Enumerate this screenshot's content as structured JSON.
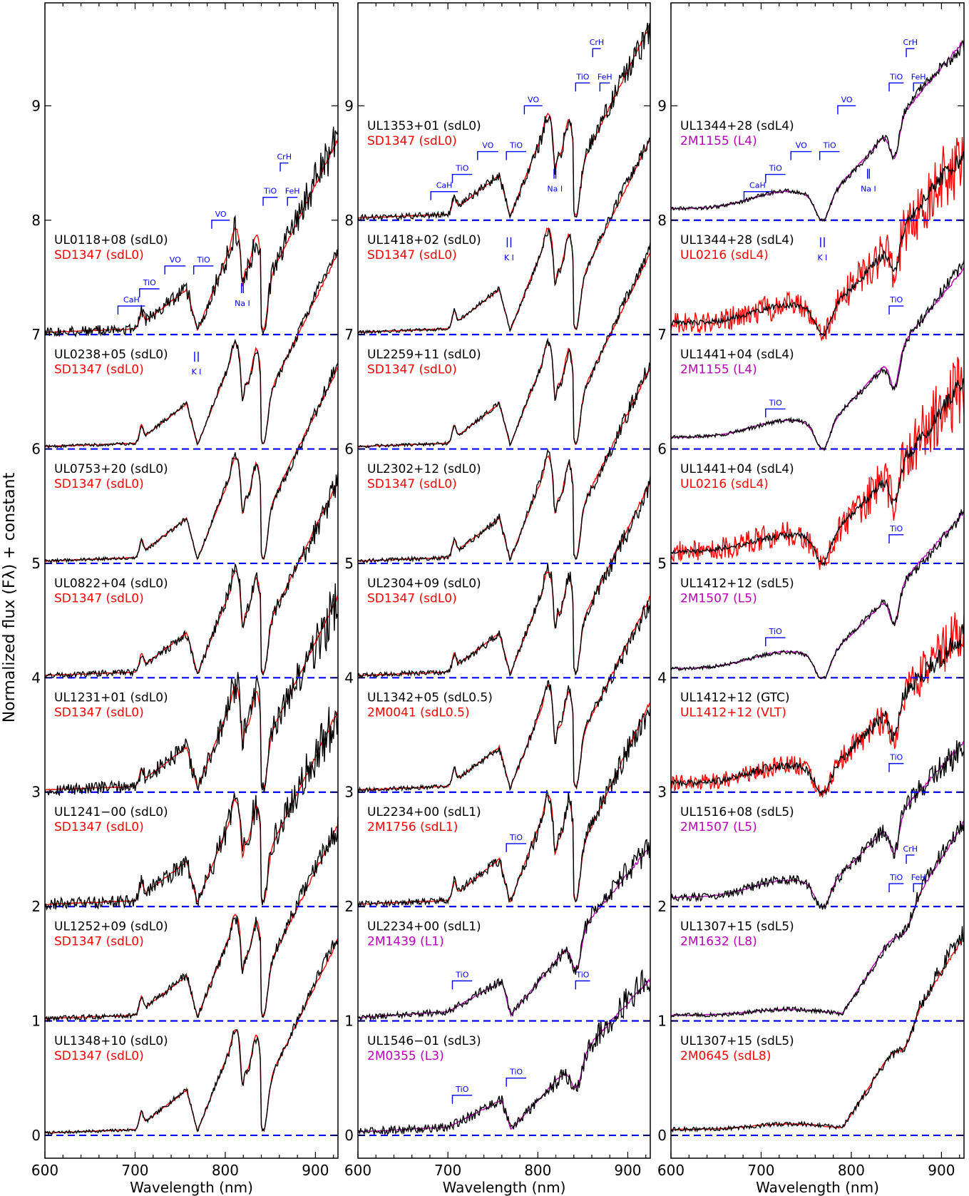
{
  "figure": {
    "ylabel": "Normalized flux (Fλ) + constant",
    "xlabel": "Wavelength (nm)"
  },
  "colors": {
    "black": "#000000",
    "red": "#ff0000",
    "magenta": "#bb00bb",
    "blue": "#0000ff",
    "gray": "#c8c8c8",
    "darkgray": "#808080"
  },
  "chart_data": [
    {
      "type": "line",
      "xlabel": "Wavelength (nm)",
      "ylabel": "Normalized flux (Fλ) + constant",
      "xlim": [
        600,
        925
      ],
      "ylim": [
        -0.2,
        9.9
      ],
      "xticks": [
        "600",
        "700",
        "800",
        "900"
      ],
      "yticks": [
        "0",
        "1",
        "2",
        "3",
        "4",
        "5",
        "6",
        "7",
        "8",
        "9"
      ],
      "telluric_bands": [
        [
          686,
          694
        ],
        [
          716,
          730
        ],
        [
          758,
          765
        ],
        [
          813,
          828
        ],
        [
          893,
          925
        ]
      ],
      "band_labels": [
        {
          "text": "CaH",
          "x1": 681,
          "x2": 711,
          "y": 7.25
        },
        {
          "text": "TiO",
          "x1": 705,
          "x2": 727,
          "y": 7.4
        },
        {
          "text": "VO",
          "x1": 733,
          "x2": 756,
          "y": 7.6
        },
        {
          "text": "TiO",
          "x1": 765,
          "x2": 787,
          "y": 7.6
        },
        {
          "text": "VO",
          "x1": 785,
          "x2": 805,
          "y": 8.0
        },
        {
          "text": "TiO",
          "x1": 842,
          "x2": 858,
          "y": 8.2
        },
        {
          "text": "CrH",
          "x1": 861,
          "x2": 870,
          "y": 8.5
        },
        {
          "text": "FeH",
          "x1": 869,
          "x2": 880,
          "y": 8.2
        },
        {
          "text": "K I",
          "x1": 766,
          "x2": 770,
          "y": 6.85,
          "below": true
        },
        {
          "text": "Na I",
          "x1": 818,
          "x2": 820,
          "y": 7.45,
          "below": true
        }
      ],
      "series": [
        {
          "offset": 0,
          "label": "UL1348+10 (sdL0)",
          "comparison": "SD1347 (sdL0)",
          "comp_color": "red",
          "shape": "sdL0",
          "noise": 0.03
        },
        {
          "offset": 1,
          "label": "UL1252+09 (sdL0)",
          "comparison": "SD1347 (sdL0)",
          "comp_color": "red",
          "shape": "sdL0",
          "noise": 0.05
        },
        {
          "offset": 2,
          "label": "UL1241−00 (sdL0)",
          "comparison": "SD1347 (sdL0)",
          "comp_color": "red",
          "shape": "sdL0",
          "noise": 0.12
        },
        {
          "offset": 3,
          "label": "UL1231+01 (sdL0)",
          "comparison": "SD1347 (sdL0)",
          "comp_color": "red",
          "shape": "sdL0",
          "noise": 0.12
        },
        {
          "offset": 4,
          "label": "UL0822+04 (sdL0)",
          "comparison": "SD1347 (sdL0)",
          "comp_color": "red",
          "shape": "sdL0",
          "noise": 0.06
        },
        {
          "offset": 5,
          "label": "UL0753+20 (sdL0)",
          "comparison": "SD1347 (sdL0)",
          "comp_color": "red",
          "shape": "sdL0",
          "noise": 0.03
        },
        {
          "offset": 6,
          "label": "UL0238+05 (sdL0)",
          "comparison": "SD1347 (sdL0)",
          "comp_color": "red",
          "shape": "sdL0",
          "noise": 0.03
        },
        {
          "offset": 7,
          "label": "UL0118+08 (sdL0)",
          "comparison": "SD1347 (sdL0)",
          "comp_color": "red",
          "shape": "sdL0",
          "noise": 0.1
        }
      ]
    },
    {
      "type": "line",
      "xlabel": "Wavelength (nm)",
      "xlim": [
        600,
        925
      ],
      "ylim": [
        -0.2,
        9.9
      ],
      "xticks": [
        "600",
        "700",
        "800",
        "900"
      ],
      "yticks": [
        "0",
        "1",
        "2",
        "3",
        "4",
        "5",
        "6",
        "7",
        "8",
        "9"
      ],
      "telluric_bands": [
        [
          686,
          694
        ],
        [
          716,
          730
        ],
        [
          758,
          765
        ],
        [
          813,
          828
        ],
        [
          893,
          925
        ]
      ],
      "band_labels": [
        {
          "text": "CaH",
          "x1": 681,
          "x2": 711,
          "y": 8.25
        },
        {
          "text": "TiO",
          "x1": 705,
          "x2": 727,
          "y": 8.4
        },
        {
          "text": "VO",
          "x1": 733,
          "x2": 756,
          "y": 8.6
        },
        {
          "text": "TiO",
          "x1": 765,
          "x2": 787,
          "y": 8.6
        },
        {
          "text": "VO",
          "x1": 785,
          "x2": 805,
          "y": 9.0
        },
        {
          "text": "TiO",
          "x1": 842,
          "x2": 858,
          "y": 9.2
        },
        {
          "text": "CrH",
          "x1": 861,
          "x2": 870,
          "y": 9.5
        },
        {
          "text": "FeH",
          "x1": 869,
          "x2": 880,
          "y": 9.2
        },
        {
          "text": "K I",
          "x1": 766,
          "x2": 770,
          "y": 7.85,
          "below": true
        },
        {
          "text": "Na I",
          "x1": 818,
          "x2": 820,
          "y": 8.45,
          "below": true
        },
        {
          "text": "TiO",
          "x1": 765,
          "x2": 787,
          "y": 2.55
        },
        {
          "text": "TiO",
          "x1": 705,
          "x2": 727,
          "y": 1.35
        },
        {
          "text": "TiO",
          "x1": 842,
          "x2": 858,
          "y": 1.35
        },
        {
          "text": "TiO",
          "x1": 705,
          "x2": 727,
          "y": 0.35
        },
        {
          "text": "TiO",
          "x1": 765,
          "x2": 787,
          "y": 0.5
        }
      ],
      "series": [
        {
          "offset": 0,
          "label": "UL1546−01 (sdL3)",
          "comparison": "2M0355 (L3)",
          "comp_color": "magenta",
          "shape": "L3",
          "noise": 0.08
        },
        {
          "offset": 1,
          "label": "UL2234+00 (sdL1)",
          "comparison": "2M1439 (L1)",
          "comp_color": "magenta",
          "shape": "L1",
          "noise": 0.06
        },
        {
          "offset": 2,
          "label": "UL2234+00 (sdL1)",
          "comparison": "2M1756 (sdL1)",
          "comp_color": "red",
          "shape": "sdL1",
          "noise": 0.06
        },
        {
          "offset": 3,
          "label": "UL1342+05 (sdL0.5)",
          "comparison": "2M0041 (sdL0.5)",
          "comp_color": "red",
          "shape": "sdL0",
          "noise": 0.04
        },
        {
          "offset": 4,
          "label": "UL2304+09 (sdL0)",
          "comparison": "SD1347 (sdL0)",
          "comp_color": "red",
          "shape": "sdL0",
          "noise": 0.05
        },
        {
          "offset": 5,
          "label": "UL2302+12 (sdL0)",
          "comparison": "SD1347 (sdL0)",
          "comp_color": "red",
          "shape": "sdL0",
          "noise": 0.04
        },
        {
          "offset": 6,
          "label": "UL2259+11 (sdL0)",
          "comparison": "SD1347 (sdL0)",
          "comp_color": "red",
          "shape": "sdL0",
          "noise": 0.03
        },
        {
          "offset": 7,
          "label": "UL1418+02 (sdL0)",
          "comparison": "SD1347 (sdL0)",
          "comp_color": "red",
          "shape": "sdL0",
          "noise": 0.03
        },
        {
          "offset": 8,
          "label": "UL1353+01 (sdL0)",
          "comparison": "SD1347 (sdL0)",
          "comp_color": "red",
          "shape": "sdL0",
          "noise": 0.06
        }
      ]
    },
    {
      "type": "line",
      "xlabel": "Wavelength (nm)",
      "xlim": [
        600,
        925
      ],
      "ylim": [
        -0.2,
        9.9
      ],
      "xticks": [
        "600",
        "700",
        "800",
        "900"
      ],
      "yticks": [
        "0",
        "1",
        "2",
        "3",
        "4",
        "5",
        "6",
        "7",
        "8",
        "9"
      ],
      "telluric_bands": [
        [
          686,
          694
        ],
        [
          716,
          730
        ],
        [
          758,
          765
        ],
        [
          813,
          828
        ],
        [
          893,
          925
        ]
      ],
      "band_labels": [
        {
          "text": "CaH",
          "x1": 681,
          "x2": 711,
          "y": 8.25
        },
        {
          "text": "TiO",
          "x1": 705,
          "x2": 727,
          "y": 8.4
        },
        {
          "text": "VO",
          "x1": 733,
          "x2": 756,
          "y": 8.6
        },
        {
          "text": "TiO",
          "x1": 765,
          "x2": 787,
          "y": 8.6
        },
        {
          "text": "VO",
          "x1": 785,
          "x2": 805,
          "y": 9.0
        },
        {
          "text": "TiO",
          "x1": 842,
          "x2": 858,
          "y": 9.2
        },
        {
          "text": "CrH",
          "x1": 861,
          "x2": 870,
          "y": 9.5
        },
        {
          "text": "FeH",
          "x1": 869,
          "x2": 880,
          "y": 9.2
        },
        {
          "text": "K I",
          "x1": 766,
          "x2": 770,
          "y": 7.85,
          "below": true
        },
        {
          "text": "Na I",
          "x1": 818,
          "x2": 820,
          "y": 8.45,
          "below": true
        },
        {
          "text": "TiO",
          "x1": 842,
          "x2": 858,
          "y": 7.25
        },
        {
          "text": "TiO",
          "x1": 705,
          "x2": 727,
          "y": 6.35
        },
        {
          "text": "TiO",
          "x1": 842,
          "x2": 858,
          "y": 5.25
        },
        {
          "text": "TiO",
          "x1": 705,
          "x2": 727,
          "y": 4.35
        },
        {
          "text": "TiO",
          "x1": 842,
          "x2": 858,
          "y": 3.25
        },
        {
          "text": "TiO",
          "x1": 842,
          "x2": 858,
          "y": 2.2
        },
        {
          "text": "CrH",
          "x1": 861,
          "x2": 870,
          "y": 2.45
        },
        {
          "text": "FeH",
          "x1": 869,
          "x2": 880,
          "y": 2.2
        }
      ],
      "series": [
        {
          "offset": 0,
          "label": "UL1307+15 (sdL5)",
          "comparison": "2M0645 (sdL8)",
          "comp_color": "red",
          "shape": "L8",
          "noise": 0.04
        },
        {
          "offset": 1,
          "label": "UL1307+15 (sdL5)",
          "comparison": "2M1632 (L8)",
          "comp_color": "magenta",
          "shape": "L8",
          "noise": 0.04
        },
        {
          "offset": 2,
          "label": "UL1516+08 (sdL5)",
          "comparison": "2M1507 (L5)",
          "comp_color": "magenta",
          "shape": "L5",
          "noise": 0.07
        },
        {
          "offset": 3,
          "label": "UL1412+12 (GTC)",
          "comparison": "UL1412+12 (VLT)",
          "comp_color": "red",
          "shape": "L5",
          "noise": 0.06,
          "comp_noise": 0.12
        },
        {
          "offset": 4,
          "label": "UL1412+12 (sdL5)",
          "comparison": "2M1507 (L5)",
          "comp_color": "magenta",
          "shape": "L5",
          "noise": 0.03
        },
        {
          "offset": 5,
          "label": "UL1441+04 (sdL4)",
          "comparison": "UL0216 (sdL4)",
          "comp_color": "red",
          "shape": "L4",
          "noise": 0.04,
          "comp_noise": 0.16
        },
        {
          "offset": 6,
          "label": "UL1441+04 (sdL4)",
          "comparison": "2M1155 (L4)",
          "comp_color": "magenta",
          "shape": "L4",
          "noise": 0.03
        },
        {
          "offset": 7,
          "label": "UL1344+28 (sdL4)",
          "comparison": "UL0216 (sdL4)",
          "comp_color": "red",
          "shape": "L4",
          "noise": 0.04,
          "comp_noise": 0.16
        },
        {
          "offset": 8,
          "label": "UL1344+28 (sdL4)",
          "comparison": "2M1155 (L4)",
          "comp_color": "magenta",
          "shape": "L4",
          "noise": 0.03
        }
      ]
    }
  ]
}
